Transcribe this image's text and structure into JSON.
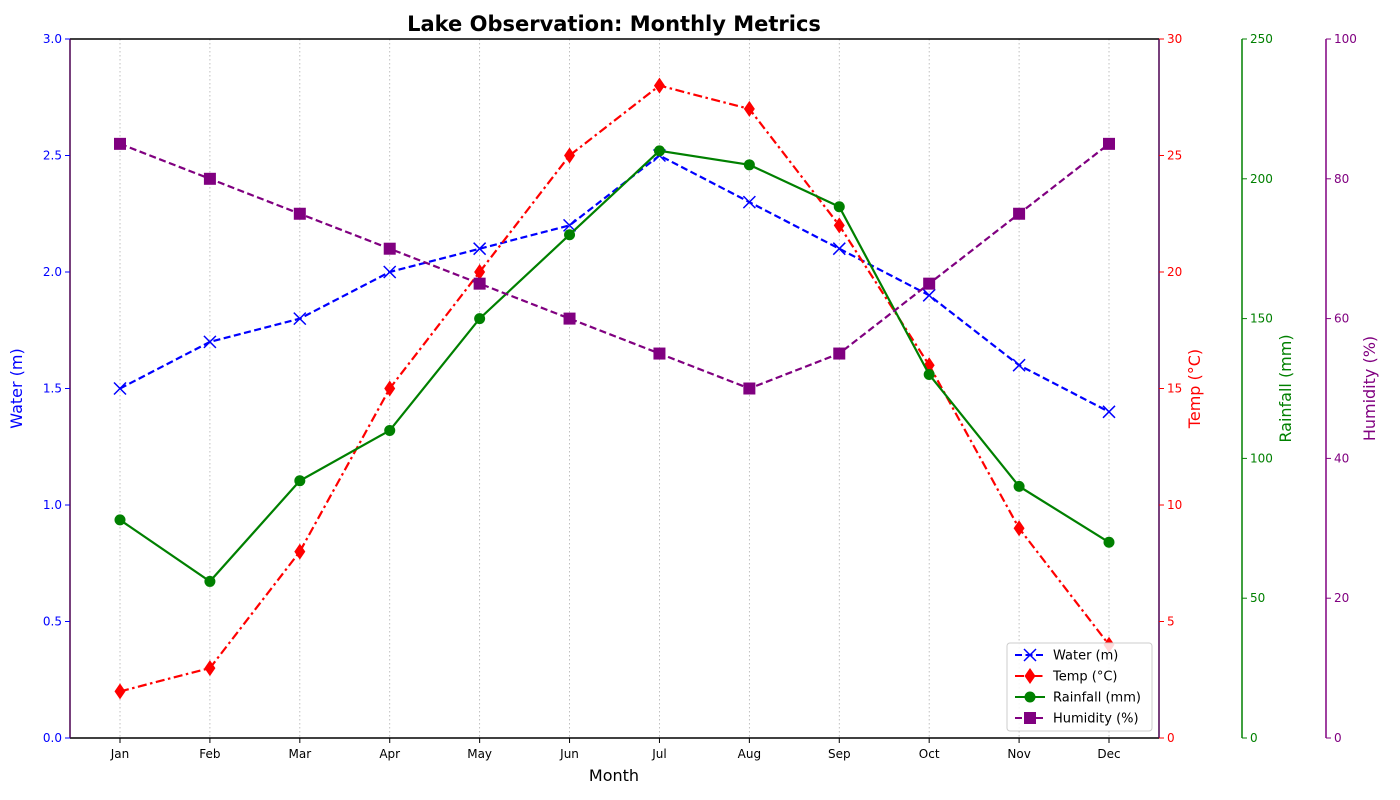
{
  "chart_data": {
    "type": "line",
    "title": "Lake Observation: Monthly Metrics",
    "xlabel": "Month",
    "categories": [
      "Jan",
      "Feb",
      "Mar",
      "Apr",
      "May",
      "Jun",
      "Jul",
      "Aug",
      "Sep",
      "Oct",
      "Nov",
      "Dec"
    ],
    "grid": "x-dotted",
    "legend_position": "lower-right",
    "axes": [
      {
        "id": "water",
        "label": "Water (m)",
        "side": "left",
        "range": [
          0,
          3.0
        ],
        "ticks": [
          "0.0",
          "0.5",
          "1.0",
          "1.5",
          "2.0",
          "2.5",
          "3.0"
        ],
        "color": "#0000ff"
      },
      {
        "id": "temp",
        "label": "Temp (°C)",
        "side": "right",
        "range": [
          0,
          30
        ],
        "ticks": [
          "0",
          "5",
          "10",
          "15",
          "20",
          "25",
          "30"
        ],
        "color": "#ff0000"
      },
      {
        "id": "rain",
        "label": "Rainfall (mm)",
        "side": "right",
        "range": [
          0,
          250
        ],
        "ticks": [
          "0",
          "50",
          "100",
          "150",
          "200",
          "250"
        ],
        "color": "#008000"
      },
      {
        "id": "hum",
        "label": "Humidity (%)",
        "side": "right",
        "range": [
          0,
          100
        ],
        "ticks": [
          "0",
          "20",
          "40",
          "60",
          "80",
          "100"
        ],
        "color": "#800080"
      }
    ],
    "series": [
      {
        "name": "Water (m)",
        "axis": "water",
        "color": "#0000ff",
        "marker": "x",
        "dash": "dashed",
        "values": [
          1.5,
          1.7,
          1.8,
          2.0,
          2.1,
          2.2,
          2.5,
          2.3,
          2.1,
          1.9,
          1.6,
          1.4
        ]
      },
      {
        "name": "Temp (°C)",
        "axis": "temp",
        "color": "#ff0000",
        "marker": "diamond",
        "dash": "dashdot",
        "values": [
          2,
          3,
          8,
          15,
          20,
          25,
          28,
          27,
          22,
          16,
          9,
          4
        ]
      },
      {
        "name": "Rainfall (mm)",
        "axis": "rain",
        "color": "#008000",
        "marker": "circle",
        "dash": "solid",
        "values": [
          78,
          56,
          92,
          110,
          150,
          180,
          210,
          205,
          190,
          130,
          90,
          70
        ]
      },
      {
        "name": "Humidity (%)",
        "axis": "hum",
        "color": "#800080",
        "marker": "square",
        "dash": "dashed",
        "values": [
          85,
          80,
          75,
          70,
          65,
          60,
          55,
          50,
          55,
          65,
          75,
          85
        ]
      }
    ]
  }
}
